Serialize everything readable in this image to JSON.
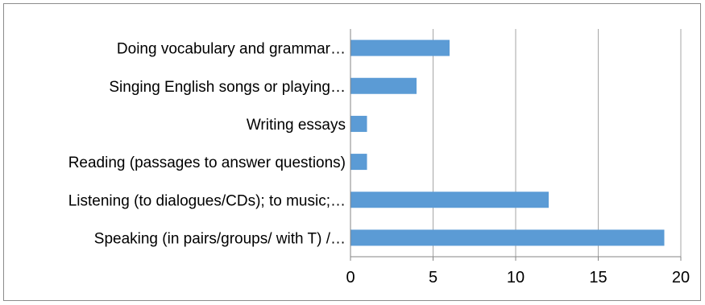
{
  "chart_data": {
    "type": "bar",
    "orientation": "horizontal",
    "categories": [
      "Doing vocabulary and grammar…",
      "Singing English songs or playing…",
      "Writing essays",
      "Reading (passages to answer questions)",
      "Listening (to dialogues/CDs); to music;…",
      "Speaking (in pairs/groups/ with T) /…"
    ],
    "values": [
      6,
      4,
      1,
      1,
      12,
      19
    ],
    "xlim": [
      0,
      20
    ],
    "xticks": [
      0,
      5,
      10,
      15,
      20
    ],
    "grid": true,
    "legend": "none",
    "bar_color": "#5b9bd5",
    "grid_color": "#a6a6a6",
    "axis_color": "#868686",
    "title": "",
    "xlabel": "",
    "ylabel": ""
  }
}
